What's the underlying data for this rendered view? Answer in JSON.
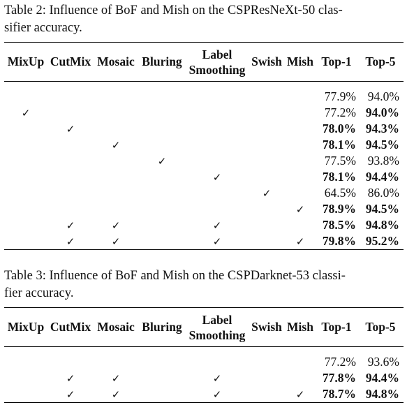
{
  "table2": {
    "caption": "Table 2: Influence of BoF and Mish on the CSPResNeXt-50 classifier accuracy.",
    "caption_line1": "Table 2: Influence of BoF and Mish on the CSPResNeXt-50 clas-",
    "caption_line2": "sifier accuracy.",
    "headers": [
      "MixUp",
      "CutMix",
      "Mosaic",
      "Bluring",
      "Label",
      "Smoothing",
      "Swish",
      "Mish",
      "Top-1",
      "Top-5"
    ],
    "rows": [
      {
        "marks": [
          false,
          false,
          false,
          false,
          false,
          false,
          false
        ],
        "top1": "77.9%",
        "top5": "94.0%",
        "top1_bold": false,
        "top5_bold": false
      },
      {
        "marks": [
          true,
          false,
          false,
          false,
          false,
          false,
          false
        ],
        "top1": "77.2%",
        "top5": "94.0%",
        "top1_bold": false,
        "top5_bold": true
      },
      {
        "marks": [
          false,
          true,
          false,
          false,
          false,
          false,
          false
        ],
        "top1": "78.0%",
        "top5": "94.3%",
        "top1_bold": true,
        "top5_bold": true
      },
      {
        "marks": [
          false,
          false,
          true,
          false,
          false,
          false,
          false
        ],
        "top1": "78.1%",
        "top5": "94.5%",
        "top1_bold": true,
        "top5_bold": true
      },
      {
        "marks": [
          false,
          false,
          false,
          true,
          false,
          false,
          false
        ],
        "top1": "77.5%",
        "top5": "93.8%",
        "top1_bold": false,
        "top5_bold": false
      },
      {
        "marks": [
          false,
          false,
          false,
          false,
          true,
          false,
          false
        ],
        "top1": "78.1%",
        "top5": "94.4%",
        "top1_bold": true,
        "top5_bold": true
      },
      {
        "marks": [
          false,
          false,
          false,
          false,
          false,
          true,
          false
        ],
        "top1": "64.5%",
        "top5": "86.0%",
        "top1_bold": false,
        "top5_bold": false
      },
      {
        "marks": [
          false,
          false,
          false,
          false,
          false,
          false,
          true
        ],
        "top1": "78.9%",
        "top5": "94.5%",
        "top1_bold": true,
        "top5_bold": true
      },
      {
        "marks": [
          false,
          true,
          true,
          false,
          true,
          false,
          false
        ],
        "top1": "78.5%",
        "top5": "94.8%",
        "top1_bold": true,
        "top5_bold": true
      },
      {
        "marks": [
          false,
          true,
          true,
          false,
          true,
          false,
          true
        ],
        "top1": "79.8%",
        "top5": "95.2%",
        "top1_bold": true,
        "top5_bold": true
      }
    ]
  },
  "table3": {
    "caption": "Table 3: Influence of BoF and Mish on the CSPDarknet-53 classifier accuracy.",
    "caption_line1": "Table 3: Influence of BoF and Mish on the CSPDarknet-53 classi-",
    "caption_line2": "fier accuracy.",
    "headers": [
      "MixUp",
      "CutMix",
      "Mosaic",
      "Bluring",
      "Label",
      "Smoothing",
      "Swish",
      "Mish",
      "Top-1",
      "Top-5"
    ],
    "rows": [
      {
        "marks": [
          false,
          false,
          false,
          false,
          false,
          false,
          false
        ],
        "top1": "77.2%",
        "top5": "93.6%",
        "top1_bold": false,
        "top5_bold": false
      },
      {
        "marks": [
          false,
          true,
          true,
          false,
          true,
          false,
          false
        ],
        "top1": "77.8%",
        "top5": "94.4%",
        "top1_bold": true,
        "top5_bold": true
      },
      {
        "marks": [
          false,
          true,
          true,
          false,
          true,
          false,
          true
        ],
        "top1": "78.7%",
        "top5": "94.8%",
        "top1_bold": true,
        "top5_bold": true
      }
    ]
  },
  "check_glyph": "✓"
}
